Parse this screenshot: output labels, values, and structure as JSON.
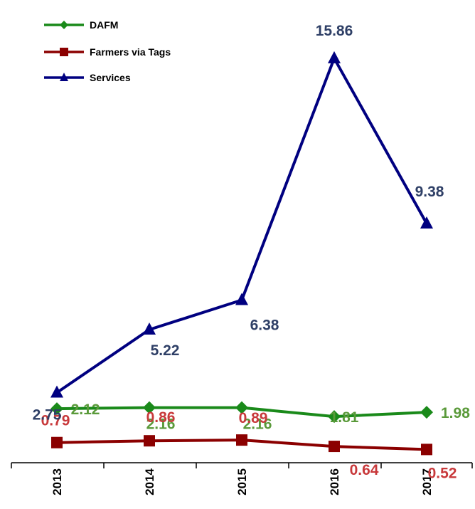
{
  "chart_data": {
    "type": "line",
    "title": "",
    "xlabel": "",
    "ylabel": "",
    "categories": [
      "2013",
      "2014",
      "2015",
      "2016",
      "2017"
    ],
    "ylim": [
      0,
      16.5
    ],
    "grid": false,
    "legend_position": "top-left",
    "series": [
      {
        "name": "DAFM",
        "values": [
          2.12,
          2.16,
          2.16,
          1.81,
          1.98
        ],
        "color": "#1a8a1a",
        "label_color": "#5a9a3a",
        "marker": "diamond",
        "labels": [
          "2.12",
          "2.16",
          "2.16",
          "1.81",
          "1.98"
        ]
      },
      {
        "name": "Farmers via Tags",
        "values": [
          0.79,
          0.86,
          0.89,
          0.64,
          0.52
        ],
        "color": "#8b0000",
        "label_color": "#c8393b",
        "marker": "square",
        "labels": [
          "0.79",
          "0.86",
          "0.89",
          "0.64",
          "0.52"
        ]
      },
      {
        "name": "Services",
        "values": [
          2.75,
          5.22,
          6.38,
          15.86,
          9.38
        ],
        "color": "#000080",
        "label_color": "#2e3f66",
        "marker": "triangle",
        "labels": [
          "2.75",
          "5.22",
          "6.38",
          "15.86",
          "9.38"
        ]
      }
    ]
  }
}
